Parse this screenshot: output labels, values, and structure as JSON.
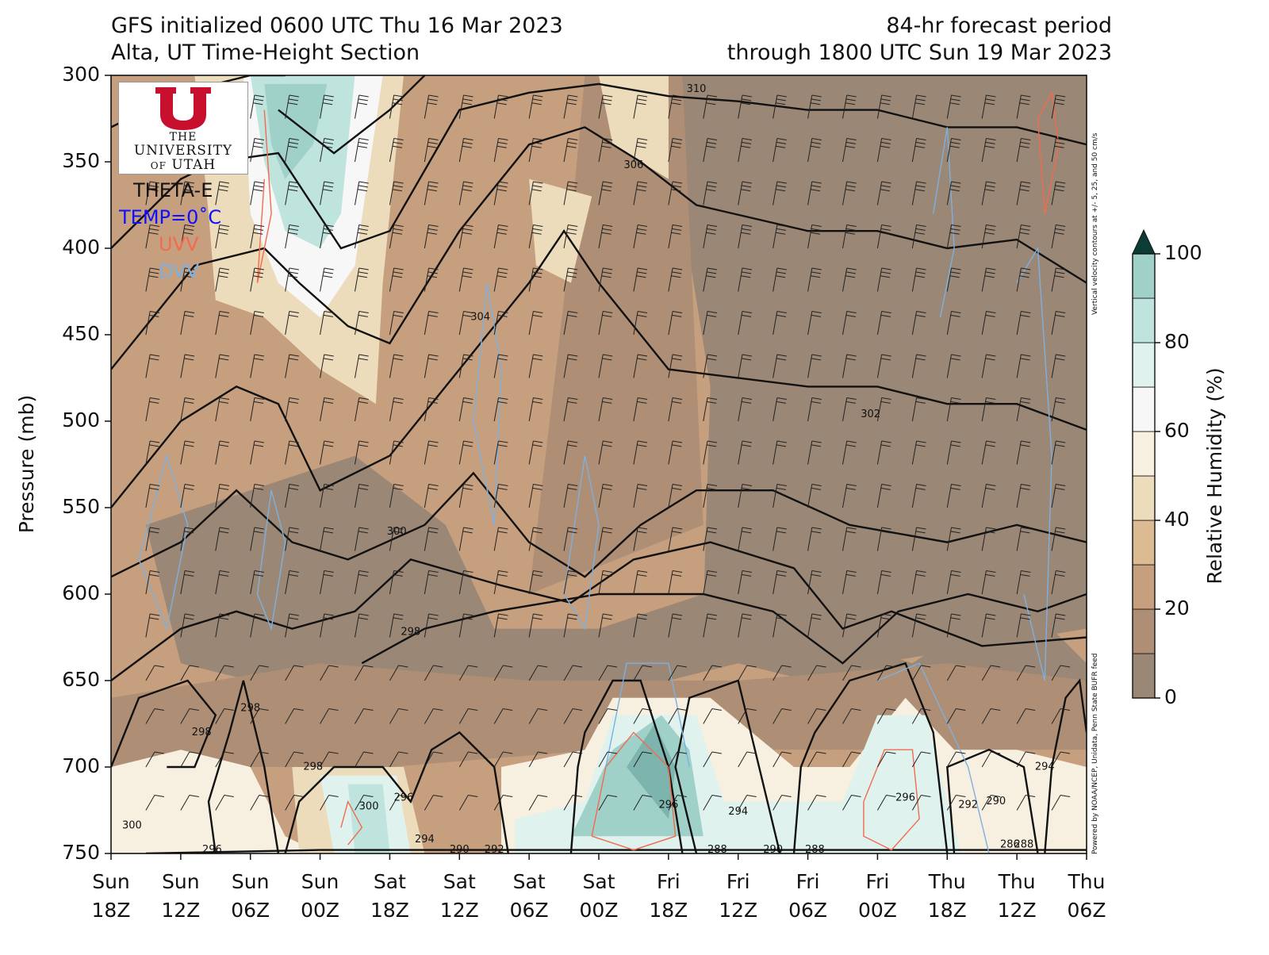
{
  "header": {
    "title_left_line1": "GFS initialized 0600 UTC Thu 16 Mar 2023",
    "title_left_line2": "Alta, UT Time-Height Section",
    "title_right_line1": "84-hr forecast period",
    "title_right_line2": "through 1800 UTC Sun 19 Mar 2023"
  },
  "logo": {
    "line1": "THE",
    "line2": "UNIVERSITY",
    "line3_small": "OF",
    "line3": "UTAH"
  },
  "legend": {
    "theta_e": "THETA-E",
    "temp": "TEMP=0˚C",
    "uvv": "UVV",
    "dvv": "DVV",
    "temp_color": "#1010ff",
    "uvv_color": "#f26b4f",
    "dvv_color": "#7db0df"
  },
  "credits": {
    "vertical_velocity": "Vertical velocity contours at +/- 5, 25, and 50 cm/s",
    "powered_by": "Powered by NOAA/NCEP, Unidata, Penn State BUFR feed"
  },
  "chart_data": {
    "type": "heatmap",
    "title": "GFS initialized 0600 UTC Thu 16 Mar 2023 — Alta, UT Time-Height Section",
    "xlabel": "",
    "ylabel": "Pressure (mb)",
    "x_ticks": [
      {
        "day": "Sun",
        "hour": "18Z"
      },
      {
        "day": "Sun",
        "hour": "12Z"
      },
      {
        "day": "Sun",
        "hour": "06Z"
      },
      {
        "day": "Sun",
        "hour": "00Z"
      },
      {
        "day": "Sat",
        "hour": "18Z"
      },
      {
        "day": "Sat",
        "hour": "12Z"
      },
      {
        "day": "Sat",
        "hour": "06Z"
      },
      {
        "day": "Sat",
        "hour": "00Z"
      },
      {
        "day": "Fri",
        "hour": "18Z"
      },
      {
        "day": "Fri",
        "hour": "12Z"
      },
      {
        "day": "Fri",
        "hour": "06Z"
      },
      {
        "day": "Fri",
        "hour": "00Z"
      },
      {
        "day": "Thu",
        "hour": "18Z"
      },
      {
        "day": "Thu",
        "hour": "12Z"
      },
      {
        "day": "Thu",
        "hour": "06Z"
      }
    ],
    "y_ticks": [
      300,
      350,
      400,
      450,
      500,
      550,
      600,
      650,
      700,
      750
    ],
    "ylim": [
      750,
      300
    ],
    "colorbar": {
      "label": "Relative Humidity (%)",
      "ticks": [
        0,
        20,
        40,
        60,
        80,
        100
      ],
      "bounds": [
        0,
        10,
        20,
        30,
        40,
        50,
        60,
        70,
        80,
        90,
        100
      ],
      "colors": [
        "#9b8775",
        "#ae8f75",
        "#c69f7e",
        "#dcba92",
        "#ecdcbb",
        "#f7efdf",
        "#f7f7f7",
        "#dff2ee",
        "#bfe3dd",
        "#9fd1c9",
        "#7db4ae"
      ],
      "extend_color": "#0b3d36"
    },
    "theta_e_contours": {
      "levels_labeled": [
        286,
        288,
        290,
        292,
        294,
        296,
        298,
        300,
        302,
        304,
        306,
        310
      ],
      "labels": [
        {
          "text": "310",
          "x": 8.4,
          "p": 308
        },
        {
          "text": "306",
          "x": 7.5,
          "p": 352
        },
        {
          "text": "304",
          "x": 5.3,
          "p": 440
        },
        {
          "text": "302",
          "x": 10.9,
          "p": 496
        },
        {
          "text": "300",
          "x": 4.1,
          "p": 564
        },
        {
          "text": "298",
          "x": 4.3,
          "p": 622
        },
        {
          "text": "298",
          "x": 1.3,
          "p": 680
        },
        {
          "text": "298",
          "x": 2.0,
          "p": 666
        },
        {
          "text": "298",
          "x": 2.9,
          "p": 700
        },
        {
          "text": "300",
          "x": 0.3,
          "p": 734
        },
        {
          "text": "300",
          "x": 3.7,
          "p": 723
        },
        {
          "text": "296",
          "x": 4.2,
          "p": 718
        },
        {
          "text": "294",
          "x": 4.5,
          "p": 742
        },
        {
          "text": "296",
          "x": 8.0,
          "p": 722
        },
        {
          "text": "294",
          "x": 9.0,
          "p": 726
        },
        {
          "text": "296",
          "x": 11.4,
          "p": 718
        },
        {
          "text": "292",
          "x": 12.3,
          "p": 722
        },
        {
          "text": "290",
          "x": 12.7,
          "p": 720
        },
        {
          "text": "294",
          "x": 13.4,
          "p": 700
        },
        {
          "text": "296",
          "x": 1.45,
          "p": 748
        },
        {
          "text": "290",
          "x": 5.0,
          "p": 748
        },
        {
          "text": "292",
          "x": 5.5,
          "p": 748
        },
        {
          "text": "288",
          "x": 8.7,
          "p": 748
        },
        {
          "text": "290",
          "x": 9.5,
          "p": 748
        },
        {
          "text": "288",
          "x": 10.1,
          "p": 748
        },
        {
          "text": "286",
          "x": 12.9,
          "p": 745
        },
        {
          "text": "288",
          "x": 13.1,
          "p": 745
        }
      ]
    },
    "wind_barbs": "present at every time column and pressure level"
  }
}
